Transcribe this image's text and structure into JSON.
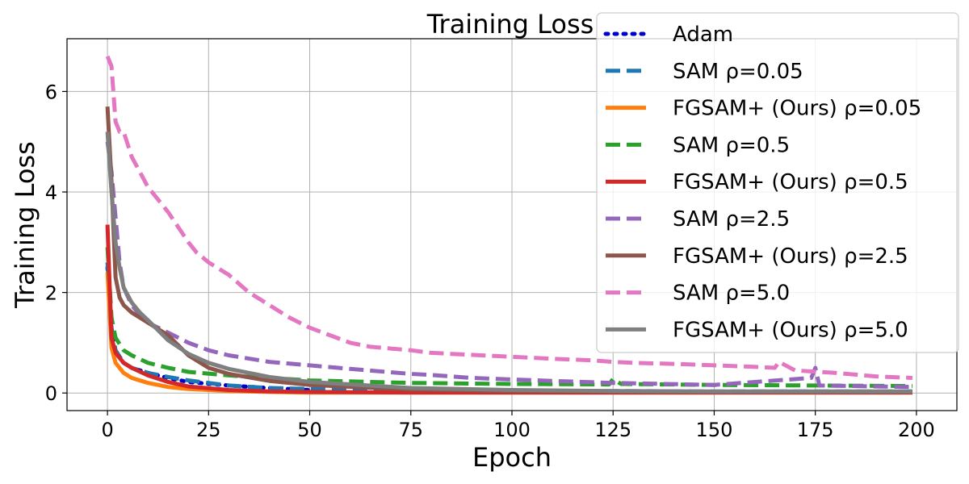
{
  "chart_data": {
    "type": "line",
    "title": "Training Loss",
    "xlabel": "Epoch",
    "ylabel": "Training Loss",
    "xlim": [
      -10,
      210
    ],
    "ylim": [
      -0.35,
      7.05
    ],
    "xticks": [
      0,
      25,
      50,
      75,
      100,
      125,
      150,
      175,
      200
    ],
    "yticks": [
      0,
      2,
      4,
      6
    ],
    "grid": true,
    "legend_position": "top-right",
    "series": [
      {
        "name": "Adam",
        "color": "#0000cc",
        "dash": "dotted",
        "width": 5,
        "x": [
          0,
          1,
          2,
          4,
          6,
          10,
          15,
          20,
          30,
          40,
          50
        ],
        "y": [
          2.5,
          1.2,
          0.8,
          0.6,
          0.5,
          0.4,
          0.3,
          0.22,
          0.15,
          0.1,
          0.06
        ]
      },
      {
        "name": "SAM ρ=0.05",
        "color": "#1f77b4",
        "dash": "dashed",
        "width": 5,
        "x": [
          0,
          1,
          2,
          4,
          6,
          10,
          15,
          20,
          30,
          40,
          50,
          60,
          80,
          100,
          125,
          150,
          175,
          199
        ],
        "y": [
          2.6,
          1.3,
          0.85,
          0.6,
          0.5,
          0.4,
          0.32,
          0.25,
          0.15,
          0.1,
          0.08,
          0.06,
          0.05,
          0.04,
          0.04,
          0.03,
          0.03,
          0.03
        ]
      },
      {
        "name": "FGSAM+ (Ours) ρ=0.05",
        "color": "#ff7f0e",
        "dash": "solid",
        "width": 5,
        "x": [
          0,
          1,
          2,
          4,
          6,
          10,
          15,
          20,
          30,
          40,
          50,
          75,
          100,
          125,
          150,
          175,
          199
        ],
        "y": [
          2.4,
          0.9,
          0.6,
          0.4,
          0.3,
          0.2,
          0.12,
          0.08,
          0.04,
          0.02,
          0.01,
          0.01,
          0.01,
          0.01,
          0.01,
          0.01,
          0.01
        ]
      },
      {
        "name": "SAM ρ=0.5",
        "color": "#2ca02c",
        "dash": "dashed",
        "width": 5,
        "x": [
          0,
          1,
          2,
          4,
          6,
          10,
          15,
          20,
          30,
          40,
          50,
          75,
          100,
          124,
          125,
          127,
          150,
          175,
          199
        ],
        "y": [
          2.9,
          1.5,
          1.1,
          0.85,
          0.75,
          0.6,
          0.5,
          0.42,
          0.35,
          0.3,
          0.25,
          0.2,
          0.18,
          0.17,
          0.28,
          0.18,
          0.16,
          0.15,
          0.14
        ]
      },
      {
        "name": "FGSAM+ (Ours) ρ=0.5",
        "color": "#d62728",
        "dash": "solid",
        "width": 5,
        "x": [
          0,
          1,
          2,
          4,
          6,
          10,
          15,
          20,
          30,
          40,
          50,
          75,
          100,
          125,
          150,
          175,
          199
        ],
        "y": [
          3.35,
          1.1,
          0.8,
          0.6,
          0.5,
          0.35,
          0.22,
          0.13,
          0.06,
          0.03,
          0.02,
          0.01,
          0.01,
          0.01,
          0.01,
          0.01,
          0.01
        ]
      },
      {
        "name": "SAM ρ=2.5",
        "color": "#9467bd",
        "dash": "dashed",
        "width": 5,
        "x": [
          0,
          1,
          2,
          3,
          4,
          6,
          8,
          10,
          15,
          20,
          25,
          30,
          40,
          50,
          60,
          75,
          80,
          90,
          100,
          110,
          125,
          150,
          174,
          175,
          176,
          199
        ],
        "y": [
          5.0,
          4.4,
          3.5,
          2.6,
          2.1,
          1.75,
          1.55,
          1.4,
          1.2,
          1.0,
          0.85,
          0.75,
          0.62,
          0.55,
          0.48,
          0.38,
          0.36,
          0.3,
          0.27,
          0.24,
          0.2,
          0.16,
          0.3,
          0.5,
          0.15,
          0.12
        ]
      },
      {
        "name": "FGSAM+ (Ours) ρ=2.5",
        "color": "#8c564b",
        "dash": "solid",
        "width": 5,
        "x": [
          0,
          1,
          2,
          3,
          4,
          6,
          8,
          10,
          15,
          20,
          25,
          30,
          40,
          50,
          75,
          100,
          125,
          150,
          175,
          199
        ],
        "y": [
          5.7,
          4.2,
          2.3,
          1.9,
          1.75,
          1.6,
          1.5,
          1.4,
          1.15,
          0.75,
          0.5,
          0.38,
          0.24,
          0.16,
          0.07,
          0.04,
          0.03,
          0.02,
          0.02,
          0.02
        ]
      },
      {
        "name": "SAM ρ=5.0",
        "color": "#e377c2",
        "dash": "dashed",
        "width": 5,
        "x": [
          0,
          1,
          2,
          3,
          4,
          6,
          8,
          10,
          15,
          20,
          22,
          25,
          30,
          35,
          40,
          45,
          50,
          55,
          60,
          65,
          75,
          80,
          90,
          100,
          110,
          120,
          125,
          130,
          140,
          150,
          160,
          165,
          166,
          170,
          180,
          190,
          199
        ],
        "y": [
          6.7,
          6.5,
          5.4,
          5.2,
          5.2,
          4.7,
          4.4,
          4.1,
          3.6,
          3.0,
          2.8,
          2.6,
          2.35,
          2.0,
          1.75,
          1.5,
          1.3,
          1.15,
          1.0,
          0.92,
          0.85,
          0.8,
          0.76,
          0.72,
          0.68,
          0.65,
          0.62,
          0.6,
          0.58,
          0.55,
          0.52,
          0.5,
          0.62,
          0.45,
          0.4,
          0.33,
          0.3
        ]
      },
      {
        "name": "FGSAM+ (Ours) ρ=5.0",
        "color": "#7f7f7f",
        "dash": "solid",
        "width": 5,
        "x": [
          0,
          1,
          2,
          3,
          4,
          6,
          8,
          10,
          15,
          20,
          25,
          30,
          40,
          50,
          75,
          100,
          125,
          150,
          175,
          199
        ],
        "y": [
          5.2,
          4.0,
          3.0,
          2.5,
          2.1,
          1.8,
          1.6,
          1.45,
          1.05,
          0.78,
          0.6,
          0.48,
          0.32,
          0.22,
          0.1,
          0.06,
          0.04,
          0.03,
          0.03,
          0.03
        ]
      }
    ]
  }
}
